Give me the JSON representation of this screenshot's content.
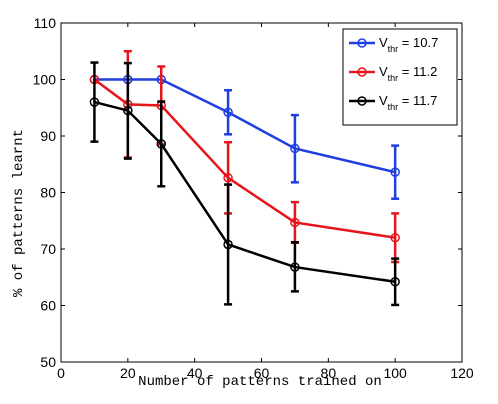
{
  "chart_data": {
    "type": "line",
    "xlabel": "Number of patterns trained on",
    "ylabel": "% of patterns learnt",
    "xlim": [
      0,
      120
    ],
    "ylim": [
      50,
      110
    ],
    "xticks": [
      "0",
      "20",
      "40",
      "60",
      "80",
      "100",
      "120"
    ],
    "yticks": [
      "50",
      "60",
      "70",
      "80",
      "90",
      "100",
      "110"
    ],
    "grid": false,
    "legend_position": "top-right",
    "x": [
      10,
      20,
      30,
      50,
      70,
      100
    ],
    "series": [
      {
        "name_main": "V",
        "name_sub": "thr",
        "name_suffix": " = 10.7",
        "color": "#1f3fe0",
        "values": [
          100,
          100,
          100,
          94.2,
          87.8,
          83.6
        ],
        "err_low": [
          100,
          100,
          100,
          90.3,
          81.8,
          78.9
        ],
        "err_high": [
          100,
          100,
          100,
          98.1,
          93.7,
          88.3
        ]
      },
      {
        "name_main": "V",
        "name_sub": "thr",
        "name_suffix": " = 11.2",
        "color": "#e8141c",
        "values": [
          100,
          95.6,
          95.4,
          82.6,
          74.7,
          72
        ],
        "err_low": [
          100,
          86.2,
          88.5,
          76.3,
          71.1,
          67.7
        ],
        "err_high": [
          100,
          105,
          102.3,
          88.9,
          78.3,
          76.3
        ]
      },
      {
        "name_main": "V",
        "name_sub": "thr",
        "name_suffix": " = 11.7",
        "color": "#000000",
        "values": [
          96,
          94.5,
          88.6,
          70.8,
          66.8,
          64.2
        ],
        "err_low": [
          89,
          86,
          81.1,
          60.2,
          62.5,
          60.1
        ],
        "err_high": [
          103,
          102.9,
          96.1,
          81.4,
          71.2,
          68.3
        ]
      }
    ]
  }
}
